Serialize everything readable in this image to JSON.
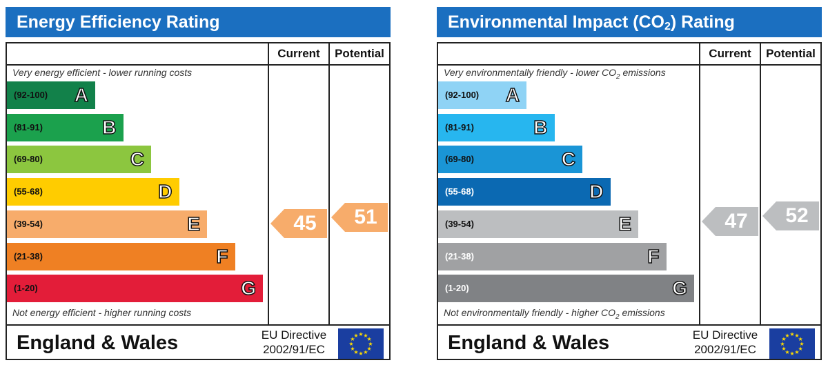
{
  "chart_data": [
    {
      "type": "bar",
      "title": "Energy Efficiency Rating",
      "columns": [
        "Current",
        "Potential"
      ],
      "top_note": "Very energy efficient - lower running costs",
      "bottom_note": "Not energy efficient - higher running costs",
      "bands": [
        {
          "range": "(92-100)",
          "letter": "A",
          "color": "#12814a"
        },
        {
          "range": "(81-91)",
          "letter": "B",
          "color": "#1ba14d"
        },
        {
          "range": "(69-80)",
          "letter": "C",
          "color": "#8cc63f"
        },
        {
          "range": "(55-68)",
          "letter": "D",
          "color": "#ffcc00"
        },
        {
          "range": "(39-54)",
          "letter": "E",
          "color": "#f7ac6b"
        },
        {
          "range": "(21-38)",
          "letter": "F",
          "color": "#ef8023"
        },
        {
          "range": "(1-20)",
          "letter": "G",
          "color": "#e31d39"
        }
      ],
      "current": {
        "value": 45,
        "band": "E",
        "color": "#f7ac6b"
      },
      "potential": {
        "value": 51,
        "band": "E",
        "color": "#f7ac6b"
      },
      "country": "England & Wales",
      "directive": [
        "EU Directive",
        "2002/91/EC"
      ]
    },
    {
      "type": "bar",
      "title": "Environmental Impact (CO2) Rating",
      "title_parts": [
        "Environmental Impact (CO",
        "2",
        ") Rating"
      ],
      "columns": [
        "Current",
        "Potential"
      ],
      "top_note_parts": [
        "Very environmentally friendly - lower CO",
        "2",
        " emissions"
      ],
      "bottom_note_parts": [
        "Not environmentally friendly - higher CO",
        "2",
        " emissions"
      ],
      "bands": [
        {
          "range": "(92-100)",
          "letter": "A",
          "color": "#8fd3f5"
        },
        {
          "range": "(81-91)",
          "letter": "B",
          "color": "#27b6ef"
        },
        {
          "range": "(69-80)",
          "letter": "C",
          "color": "#1a95d6"
        },
        {
          "range": "(55-68)",
          "letter": "D",
          "color": "#0b69b2"
        },
        {
          "range": "(39-54)",
          "letter": "E",
          "color": "#bcbec0"
        },
        {
          "range": "(21-38)",
          "letter": "F",
          "color": "#a0a1a3"
        },
        {
          "range": "(1-20)",
          "letter": "G",
          "color": "#808285"
        }
      ],
      "current": {
        "value": 47,
        "band": "E",
        "color": "#bcbec0"
      },
      "potential": {
        "value": 52,
        "band": "E",
        "color": "#bcbec0"
      },
      "country": "England & Wales",
      "directive": [
        "EU Directive",
        "2002/91/EC"
      ]
    }
  ]
}
